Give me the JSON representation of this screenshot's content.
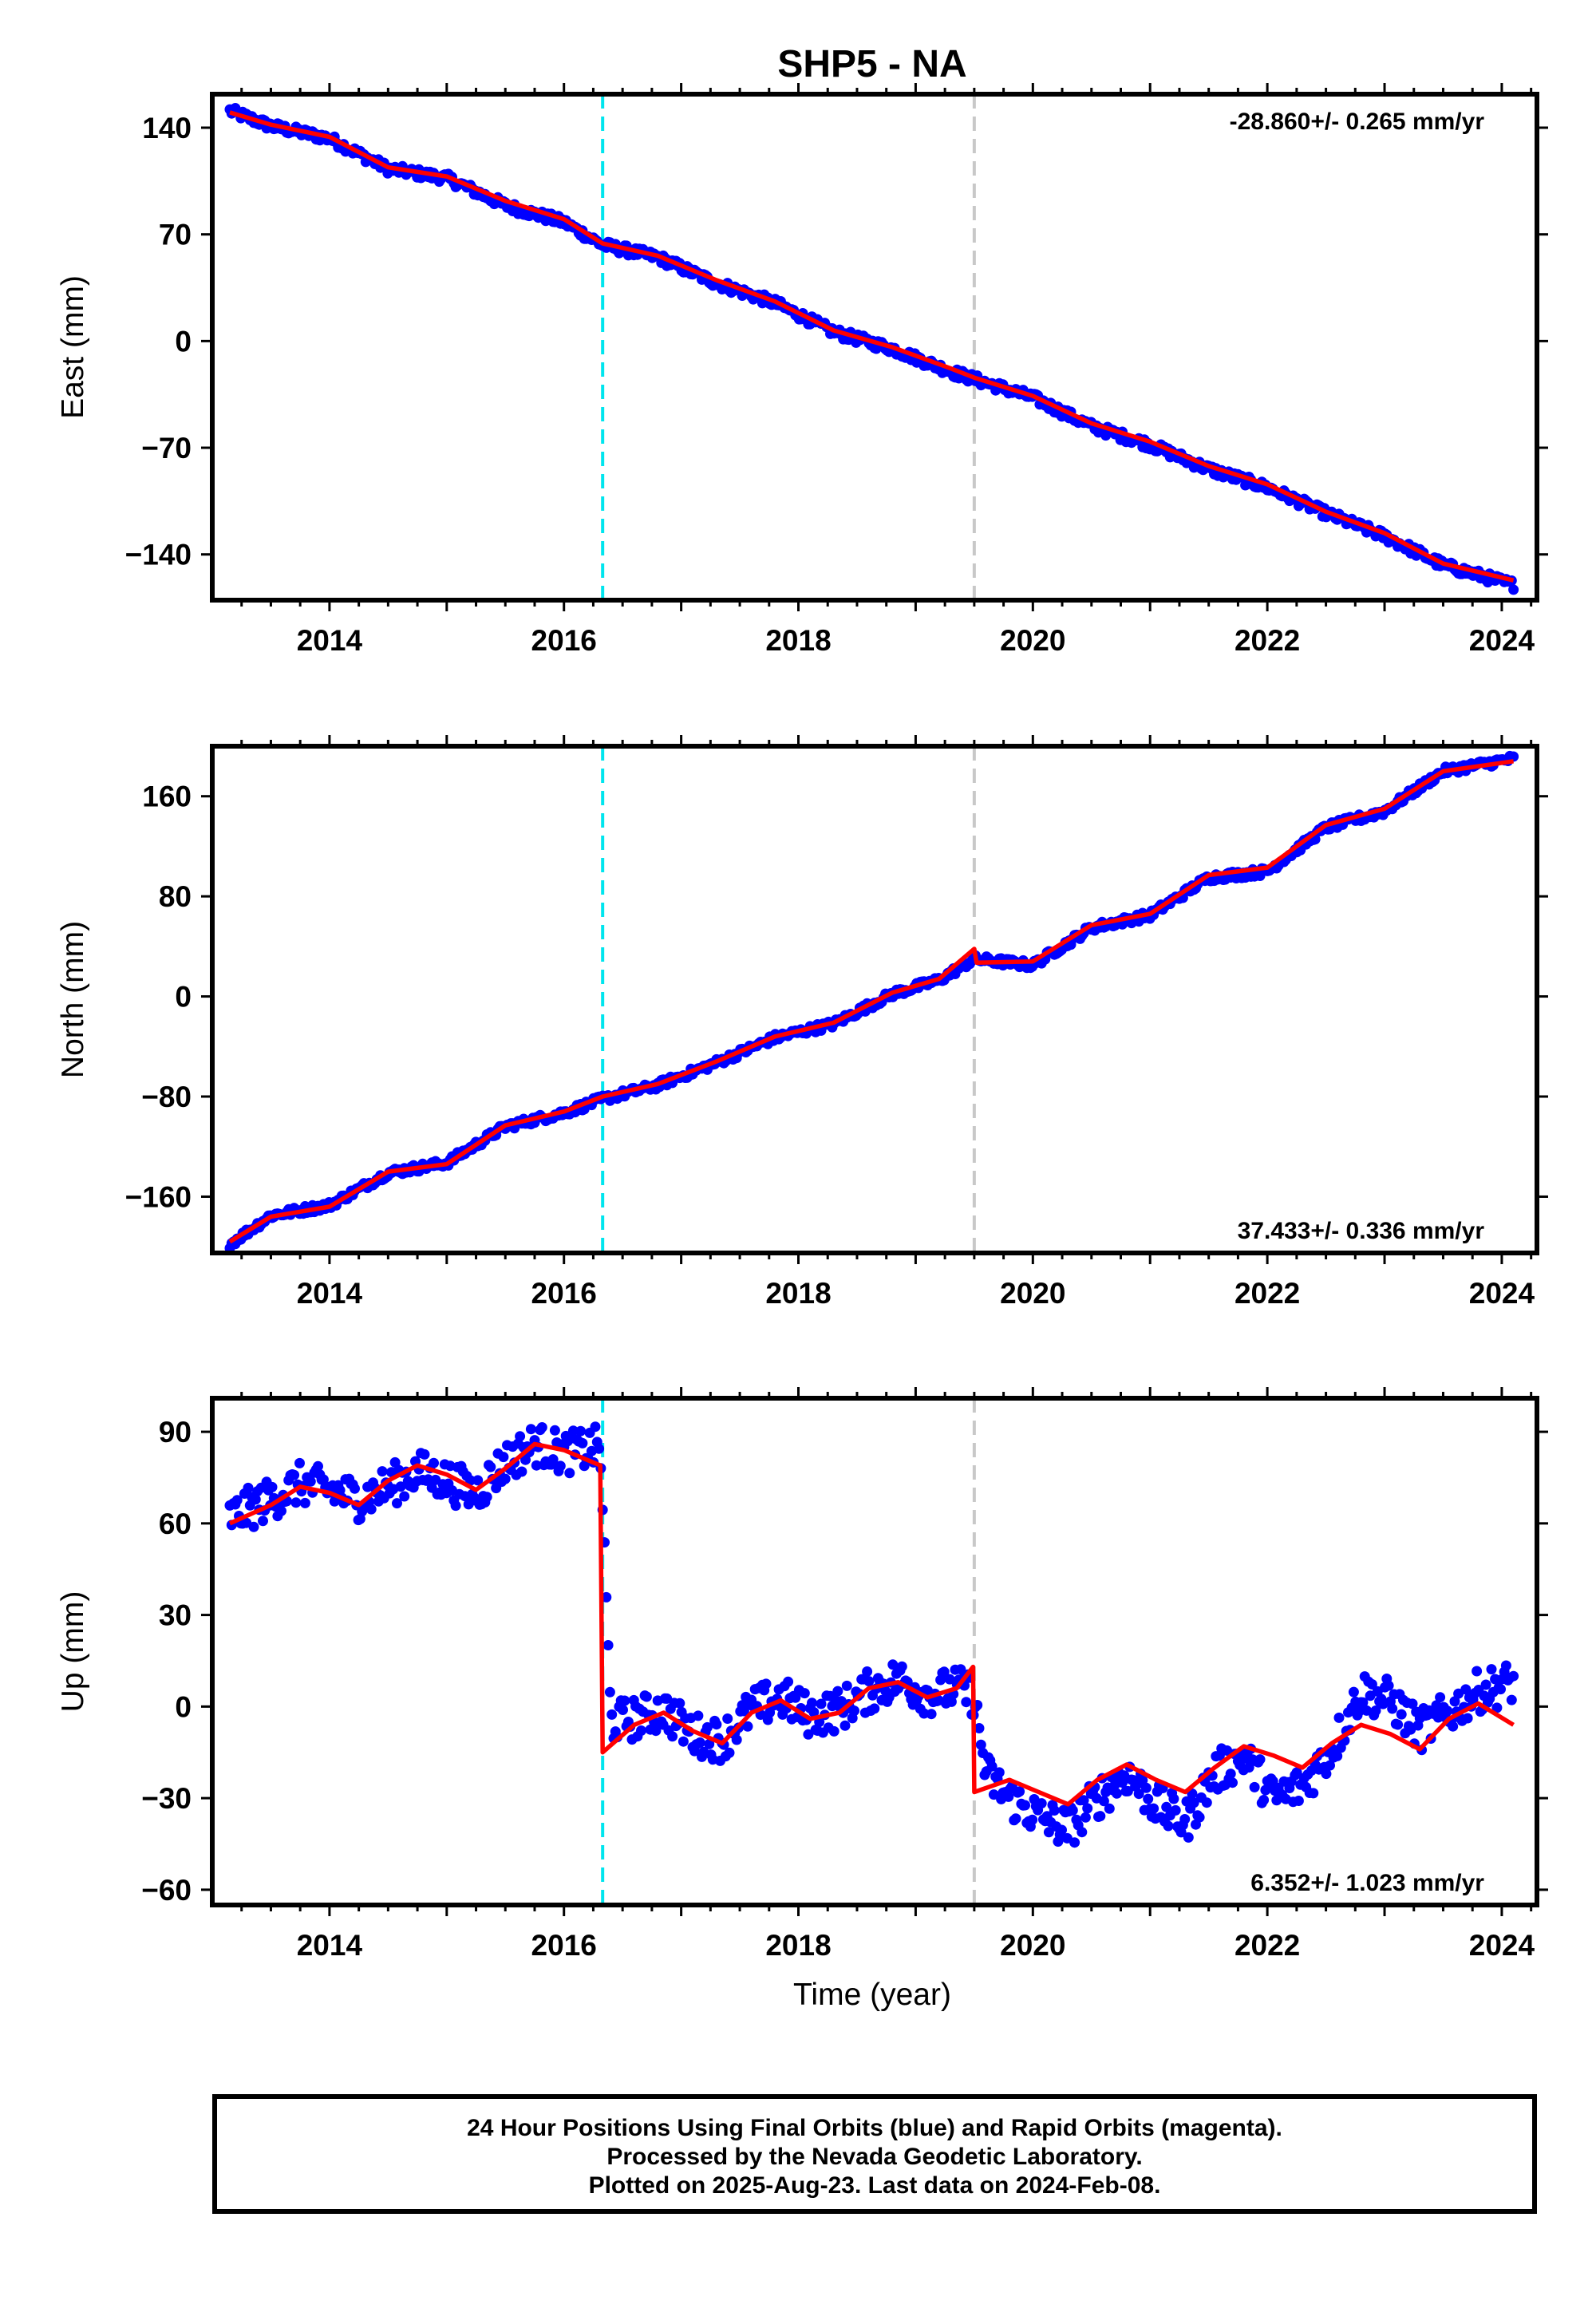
{
  "title": "SHP5 - NA",
  "xlabel": "Time (year)",
  "notes": [
    "24 Hour Positions Using Final Orbits (blue) and Rapid Orbits (magenta).",
    "Processed by the Nevada Geodetic Laboratory.",
    "Plotted on 2025-Aug-23. Last data on 2024-Feb-08."
  ],
  "colors": {
    "final_orbits": "#0000ff",
    "model": "#ff0000",
    "antenna_change_line": "#00e5ee",
    "equipment_change_line": "#c8c8c8"
  },
  "chart_data": [
    {
      "type": "scatter",
      "component": "east",
      "ylabel": "East (mm)",
      "rate_label": "-28.860+/- 0.265 mm/yr",
      "xlim": [
        2013.0,
        2024.3
      ],
      "ylim": [
        -170,
        162
      ],
      "yticks": [
        140,
        70,
        0,
        -70,
        -140
      ],
      "ytick_labels": [
        "140",
        "70",
        "0",
        "−70",
        "−140"
      ],
      "xticks": [
        2014,
        2016,
        2018,
        2020,
        2022,
        2024
      ],
      "xtick_labels": [
        "2014",
        "2016",
        "2018",
        "2020",
        "2022",
        "2024"
      ],
      "vlines": [
        {
          "x": 2016.33,
          "color": "#00e5ee"
        },
        {
          "x": 2019.5,
          "color": "#c8c8c8"
        }
      ],
      "model_points": {
        "x": [
          2013.15,
          2013.5,
          2014.0,
          2014.5,
          2015.0,
          2015.5,
          2016.0,
          2016.33,
          2016.8,
          2017.3,
          2017.8,
          2018.3,
          2018.8,
          2019.3,
          2019.5,
          2020.0,
          2020.5,
          2021.0,
          2021.5,
          2022.0,
          2022.5,
          2023.0,
          2023.5,
          2024.1
        ],
        "y": [
          150,
          142,
          134,
          114,
          108,
          92,
          80,
          64,
          56,
          40,
          26,
          7,
          -4,
          -18,
          -24,
          -36,
          -54,
          -66,
          -82,
          -94,
          -112,
          -126,
          -146,
          -157
        ]
      },
      "data_points": {
        "x": [
          2013.15,
          2013.5,
          2014.0,
          2014.5,
          2015.0,
          2015.5,
          2016.0,
          2016.33,
          2016.8,
          2017.3,
          2017.8,
          2018.3,
          2018.8,
          2019.3,
          2019.5,
          2020.0,
          2020.5,
          2021.0,
          2021.5,
          2022.0,
          2022.5,
          2023.0,
          2023.5,
          2024.1
        ],
        "y": [
          151,
          141,
          133,
          113,
          107,
          89,
          78,
          63,
          55,
          38,
          25,
          6,
          -5,
          -20,
          -25,
          -37,
          -56,
          -68,
          -84,
          -96,
          -113,
          -128,
          -147,
          -160
        ]
      }
    },
    {
      "type": "scatter",
      "component": "north",
      "ylabel": "North (mm)",
      "rate_label": "37.433+/- 0.336 mm/yr",
      "xlim": [
        2013.0,
        2024.3
      ],
      "ylim": [
        -205,
        200
      ],
      "yticks": [
        160,
        80,
        0,
        -80,
        -160
      ],
      "ytick_labels": [
        "160",
        "80",
        "0",
        "−80",
        "−160"
      ],
      "xticks": [
        2014,
        2016,
        2018,
        2020,
        2022,
        2024
      ],
      "xtick_labels": [
        "2014",
        "2016",
        "2018",
        "2020",
        "2022",
        "2024"
      ],
      "vlines": [
        {
          "x": 2016.33,
          "color": "#00e5ee"
        },
        {
          "x": 2019.5,
          "color": "#c8c8c8"
        }
      ],
      "model_points": {
        "x": [
          2013.15,
          2013.5,
          2014.0,
          2014.5,
          2015.0,
          2015.5,
          2016.0,
          2016.33,
          2016.8,
          2017.3,
          2017.8,
          2018.3,
          2018.8,
          2019.2,
          2019.5,
          2019.52,
          2020.0,
          2020.5,
          2021.0,
          2021.5,
          2022.0,
          2022.5,
          2023.0,
          2023.5,
          2024.1
        ],
        "y": [
          -196,
          -176,
          -168,
          -140,
          -134,
          -103,
          -92,
          -80,
          -70,
          -52,
          -32,
          -21,
          3,
          14,
          38,
          27,
          28,
          57,
          66,
          97,
          103,
          137,
          150,
          180,
          188
        ]
      },
      "data_points": {
        "x": [
          2013.15,
          2013.5,
          2014.0,
          2014.5,
          2015.0,
          2015.5,
          2016.0,
          2016.33,
          2016.8,
          2017.3,
          2017.8,
          2018.3,
          2018.8,
          2019.2,
          2019.5,
          2020.0,
          2020.5,
          2021.0,
          2021.5,
          2022.0,
          2022.5,
          2023.0,
          2023.5,
          2024.1
        ],
        "y": [
          -198,
          -175,
          -167,
          -141,
          -133,
          -104,
          -93,
          -82,
          -71,
          -53,
          -33,
          -22,
          2,
          13,
          30,
          25,
          55,
          65,
          95,
          100,
          135,
          148,
          180,
          190
        ]
      }
    },
    {
      "type": "scatter",
      "component": "up",
      "ylabel": "Up (mm)",
      "rate_label": "6.352+/- 1.023 mm/yr",
      "xlim": [
        2013.0,
        2024.3
      ],
      "ylim": [
        -65,
        101
      ],
      "yticks": [
        90,
        60,
        30,
        0,
        -30,
        -60
      ],
      "ytick_labels": [
        "90",
        "60",
        "30",
        "0",
        "−30",
        "−60"
      ],
      "xticks": [
        2014,
        2016,
        2018,
        2020,
        2022,
        2024
      ],
      "xtick_labels": [
        "2014",
        "2016",
        "2018",
        "2020",
        "2022",
        "2024"
      ],
      "vlines": [
        {
          "x": 2016.33,
          "color": "#00e5ee"
        },
        {
          "x": 2019.5,
          "color": "#c8c8c8"
        }
      ],
      "model_points": {
        "x": [
          2013.15,
          2013.5,
          2013.75,
          2014.0,
          2014.25,
          2014.5,
          2014.75,
          2015.0,
          2015.25,
          2015.5,
          2015.75,
          2016.0,
          2016.31,
          2016.33,
          2016.6,
          2016.85,
          2017.1,
          2017.35,
          2017.6,
          2017.85,
          2018.1,
          2018.35,
          2018.6,
          2018.85,
          2019.1,
          2019.35,
          2019.49,
          2019.5,
          2019.8,
          2020.05,
          2020.3,
          2020.55,
          2020.8,
          2021.05,
          2021.3,
          2021.55,
          2021.8,
          2022.05,
          2022.3,
          2022.55,
          2022.8,
          2023.05,
          2023.3,
          2023.55,
          2023.8,
          2024.1
        ],
        "y": [
          60,
          66,
          72,
          70,
          66,
          74,
          79,
          76,
          71,
          78,
          86,
          84,
          79,
          -15,
          -6,
          -2,
          -8,
          -12,
          -2,
          2,
          -4,
          -2,
          6,
          8,
          3,
          6,
          13,
          -28,
          -24,
          -28,
          -32,
          -24,
          -19,
          -24,
          -28,
          -20,
          -13,
          -16,
          -20,
          -12,
          -6,
          -9,
          -14,
          -4,
          1,
          -6
        ]
      },
      "data_points": {
        "x": [
          2013.15,
          2013.5,
          2013.75,
          2014.0,
          2014.25,
          2014.5,
          2014.75,
          2015.0,
          2015.25,
          2015.5,
          2015.75,
          2016.0,
          2016.31,
          2016.4,
          2016.6,
          2016.85,
          2017.1,
          2017.35,
          2017.6,
          2017.85,
          2018.1,
          2018.35,
          2018.6,
          2018.85,
          2019.1,
          2019.35,
          2019.49,
          2019.6,
          2019.8,
          2020.05,
          2020.3,
          2020.55,
          2020.8,
          2021.05,
          2021.3,
          2021.55,
          2021.8,
          2022.05,
          2022.3,
          2022.55,
          2022.8,
          2023.05,
          2023.3,
          2023.55,
          2023.8,
          2024.1
        ],
        "y": [
          62,
          68,
          73,
          71,
          68,
          72,
          77,
          74,
          70,
          80,
          86,
          83,
          85,
          -5,
          -4,
          -1,
          -9,
          -11,
          -1,
          3,
          -3,
          -1,
          5,
          9,
          4,
          6,
          4,
          -22,
          -30,
          -36,
          -40,
          -30,
          -22,
          -32,
          -38,
          -22,
          -16,
          -30,
          -26,
          -14,
          5,
          2,
          -8,
          -2,
          5,
          8
        ]
      }
    }
  ]
}
